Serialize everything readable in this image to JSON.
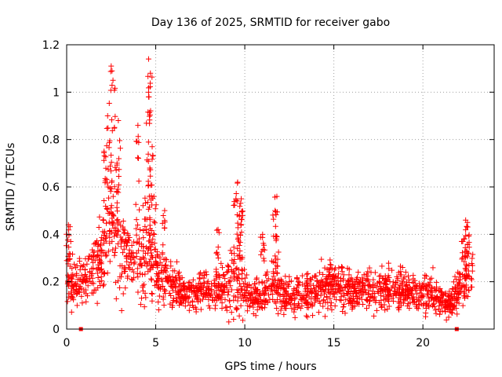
{
  "chart_data": {
    "type": "scatter",
    "title": "Day 136 of 2025, SRMTID for receiver gabo",
    "xlabel": "GPS time / hours",
    "ylabel": "SRMTID / TECUs",
    "xlim": [
      0,
      24
    ],
    "ylim": [
      0,
      1.2
    ],
    "grid": true,
    "x_ticks": [
      0,
      5,
      10,
      15,
      20
    ],
    "x_tick_labels": [
      "0",
      "5",
      "10",
      "15",
      "20"
    ],
    "y_ticks": [
      0,
      0.2,
      0.4,
      0.6,
      0.8,
      1.0,
      1.2
    ],
    "y_tick_labels": [
      "0",
      "0.2",
      "0.4",
      "0.6",
      "0.8",
      "1",
      "1.2"
    ],
    "marker": "plus",
    "color": "#ff0000",
    "square_markers": [
      [
        0.8,
        0.0
      ],
      [
        21.9,
        0.0
      ]
    ],
    "envelope": {
      "x": [
        0,
        0.5,
        1,
        1.5,
        2,
        2.5,
        3,
        3.5,
        4,
        4.5,
        5,
        5.5,
        6,
        6.5,
        7,
        7.5,
        8,
        8.5,
        9,
        9.5,
        10,
        10.5,
        11,
        11.5,
        12,
        12.5,
        13,
        13.5,
        14,
        14.5,
        15,
        15.5,
        16,
        16.5,
        17,
        17.5,
        18,
        18.5,
        19,
        19.5,
        20,
        20.5,
        21,
        21.5,
        22,
        22.5,
        22.8
      ],
      "median": [
        0.25,
        0.2,
        0.2,
        0.25,
        0.3,
        0.45,
        0.35,
        0.3,
        0.3,
        0.35,
        0.25,
        0.22,
        0.18,
        0.15,
        0.15,
        0.16,
        0.16,
        0.17,
        0.18,
        0.22,
        0.16,
        0.14,
        0.14,
        0.18,
        0.17,
        0.13,
        0.14,
        0.15,
        0.16,
        0.18,
        0.2,
        0.18,
        0.16,
        0.17,
        0.16,
        0.17,
        0.18,
        0.17,
        0.16,
        0.15,
        0.16,
        0.15,
        0.12,
        0.1,
        0.15,
        0.22,
        0.22
      ],
      "spread": [
        0.12,
        0.1,
        0.08,
        0.1,
        0.15,
        0.25,
        0.2,
        0.15,
        0.18,
        0.2,
        0.12,
        0.1,
        0.08,
        0.06,
        0.06,
        0.07,
        0.07,
        0.08,
        0.1,
        0.15,
        0.08,
        0.07,
        0.07,
        0.1,
        0.08,
        0.07,
        0.07,
        0.08,
        0.08,
        0.09,
        0.1,
        0.09,
        0.08,
        0.08,
        0.08,
        0.08,
        0.09,
        0.08,
        0.07,
        0.07,
        0.08,
        0.07,
        0.06,
        0.05,
        0.08,
        0.1,
        0.1
      ]
    },
    "peaks": [
      {
        "x": 2.5,
        "y": 1.11
      },
      {
        "x": 2.6,
        "y": 1.05
      },
      {
        "x": 2.3,
        "y": 0.9
      },
      {
        "x": 2.9,
        "y": 0.88
      },
      {
        "x": 2.1,
        "y": 0.75
      },
      {
        "x": 4.0,
        "y": 0.86
      },
      {
        "x": 4.6,
        "y": 1.14
      },
      {
        "x": 4.7,
        "y": 1.08
      },
      {
        "x": 4.6,
        "y": 0.98
      },
      {
        "x": 4.8,
        "y": 0.77
      },
      {
        "x": 4.9,
        "y": 0.56
      },
      {
        "x": 5.5,
        "y": 0.5
      },
      {
        "x": 8.5,
        "y": 0.42
      },
      {
        "x": 9.6,
        "y": 0.62
      },
      {
        "x": 9.5,
        "y": 0.55
      },
      {
        "x": 9.8,
        "y": 0.55
      },
      {
        "x": 9.7,
        "y": 0.48
      },
      {
        "x": 11.8,
        "y": 0.56
      },
      {
        "x": 11.7,
        "y": 0.5
      },
      {
        "x": 11.0,
        "y": 0.4
      },
      {
        "x": 22.4,
        "y": 0.46
      },
      {
        "x": 22.5,
        "y": 0.45
      },
      {
        "x": 22.3,
        "y": 0.38
      },
      {
        "x": 0.1,
        "y": 0.44
      }
    ]
  }
}
